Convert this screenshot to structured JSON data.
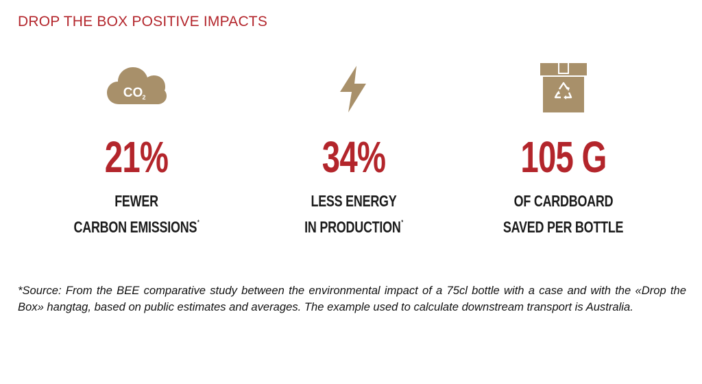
{
  "title": "DROP THE BOX POSITIVE IMPACTS",
  "colors": {
    "accent": "#b3252b",
    "icon": "#a8906a",
    "text": "#1b1b1b"
  },
  "stats": [
    {
      "icon": "co2-cloud-icon",
      "icon_text": "CO",
      "icon_sub": "2",
      "value": "21%",
      "line1": "FEWER",
      "line2": "CARBON EMISSIONS",
      "mark": "*"
    },
    {
      "icon": "lightning-bolt-icon",
      "value": "34%",
      "line1": "LESS ENERGY",
      "line2": "IN PRODUCTION",
      "mark": "*"
    },
    {
      "icon": "recycled-cardboard-box-icon",
      "value": "105 G",
      "line1": "OF CARDBOARD",
      "line2": "SAVED PER BOTTLE",
      "mark": ""
    }
  ],
  "footnote": "*Source: From the BEE comparative study between the environmental impact of a 75cl bottle with a case and with the «Drop the Box» hangtag, based on public estimates and averages. The example used to calculate downstream transport is Australia."
}
